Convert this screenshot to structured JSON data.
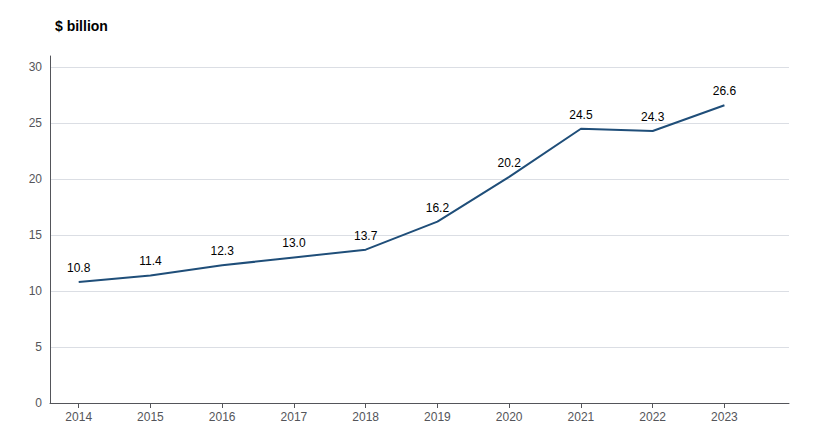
{
  "chart_data": {
    "type": "line",
    "ylabel": "$ billion",
    "x": [
      2014,
      2015,
      2016,
      2017,
      2018,
      2019,
      2020,
      2021,
      2022,
      2023
    ],
    "values": [
      10.8,
      11.4,
      12.3,
      13.0,
      13.7,
      16.2,
      20.2,
      24.5,
      24.3,
      26.6
    ],
    "value_labels": [
      "10.8",
      "11.4",
      "12.3",
      "13.0",
      "13.7",
      "16.2",
      "20.2",
      "24.5",
      "24.3",
      "26.6"
    ],
    "data_labels": true,
    "color": "#1F4E79",
    "ylim": [
      0,
      31
    ],
    "yticks": [
      0,
      5,
      10,
      15,
      20,
      25,
      30
    ],
    "xlim": [
      2013.6,
      2023.9
    ],
    "xticks": [
      2014,
      2015,
      2016,
      2017,
      2018,
      2019,
      2020,
      2021,
      2022,
      2023
    ],
    "grid": true
  }
}
